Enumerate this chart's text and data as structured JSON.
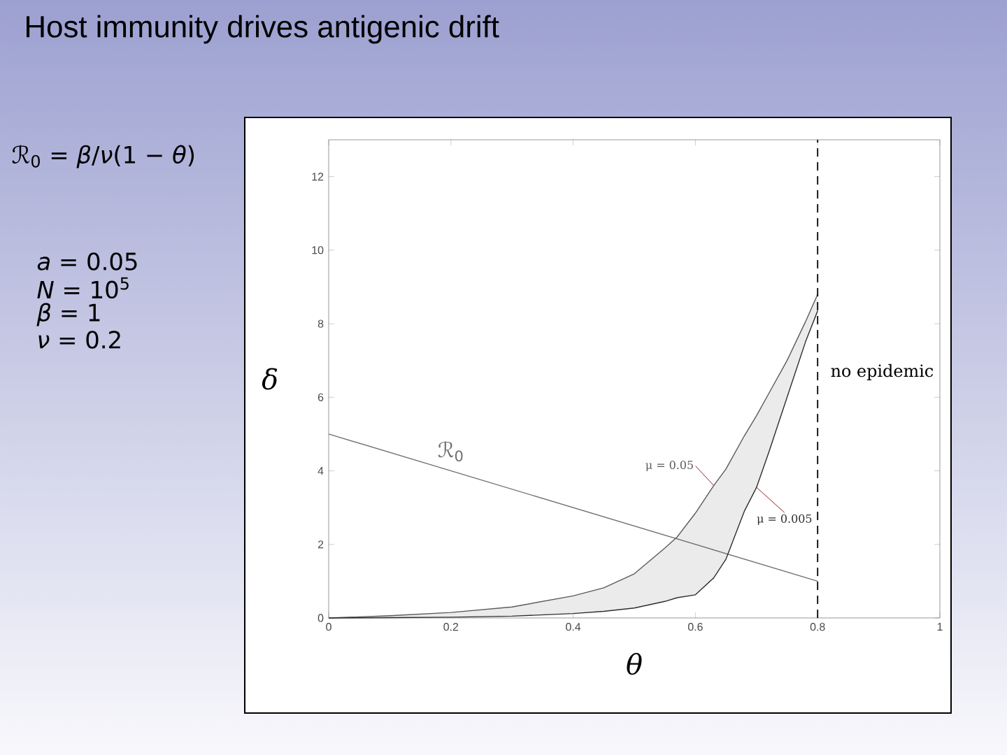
{
  "chart_data": {
    "type": "line",
    "title": "Host immunity drives antigenic drift",
    "xlabel": "θ",
    "ylabel": "δ",
    "xlim": [
      0,
      1
    ],
    "ylim": [
      0,
      13
    ],
    "xticks": [
      0,
      0.2,
      0.4,
      0.6,
      0.8,
      1
    ],
    "yticks": [
      0,
      2,
      4,
      6,
      8,
      10,
      12
    ],
    "series": [
      {
        "name": "ℛ$_{0}$",
        "x": [
          0,
          0.8
        ],
        "values": [
          5,
          1
        ],
        "color": "#707070"
      },
      {
        "name": "μ = 0.05",
        "x": [
          0,
          0.1,
          0.2,
          0.3,
          0.4,
          0.45,
          0.5,
          0.55,
          0.57,
          0.6,
          0.63,
          0.65,
          0.68,
          0.7,
          0.72,
          0.75,
          0.78,
          0.8
        ],
        "values": [
          0,
          0.06,
          0.15,
          0.3,
          0.6,
          0.82,
          1.2,
          1.9,
          2.2,
          2.85,
          3.6,
          4.05,
          4.95,
          5.5,
          6.1,
          7.0,
          8.05,
          8.8
        ],
        "lower": [
          0,
          0.01,
          0.02,
          0.05,
          0.12,
          0.18,
          0.27,
          0.45,
          0.55,
          0.63,
          1.09,
          1.6,
          2.9,
          3.55,
          4.5,
          6.0,
          7.5,
          8.35
        ],
        "upper": [
          0,
          0.06,
          0.15,
          0.3,
          0.6,
          0.82,
          1.2,
          1.9,
          2.2,
          2.85,
          3.6,
          4.05,
          4.95,
          5.5,
          6.1,
          7.0,
          8.05,
          8.8
        ],
        "color": "#5a5a5a"
      },
      {
        "name": "μ = 0.005",
        "x": [
          0,
          0.1,
          0.2,
          0.3,
          0.4,
          0.45,
          0.5,
          0.55,
          0.57,
          0.6,
          0.63,
          0.65,
          0.68,
          0.7,
          0.72,
          0.75,
          0.78,
          0.8
        ],
        "values": [
          0,
          0.01,
          0.02,
          0.05,
          0.12,
          0.18,
          0.27,
          0.45,
          0.55,
          0.63,
          1.09,
          1.6,
          2.9,
          3.55,
          4.5,
          6.0,
          7.5,
          8.35
        ],
        "color": "#2e2e2e"
      }
    ],
    "ref_lines": [
      {
        "axis": "x",
        "value": 0.8,
        "label": "no epidemic",
        "line_style": "dashed",
        "color": "#000000"
      }
    ],
    "annotations": [
      "ℛ$_{0}$ = *β*/*ν*(1 − *θ*)",
      "*a* = 0.05",
      "*N* = 10$^{5}$",
      "*β* = 1",
      "*ν* = 0.2"
    ]
  }
}
